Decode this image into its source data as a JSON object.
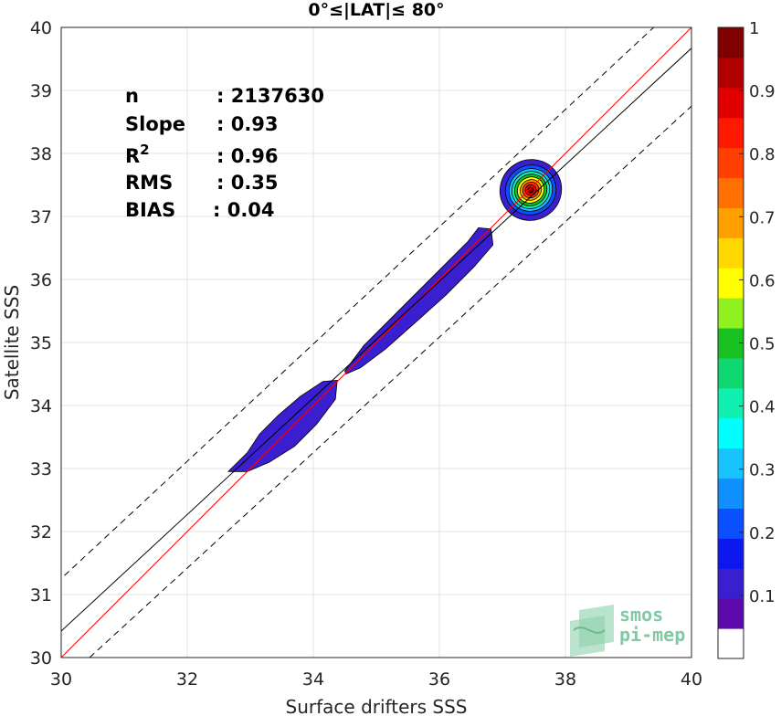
{
  "chart_data": {
    "type": "heatmap",
    "title": "0°≤|LAT|≤ 80°",
    "xlabel": "Surface drifters SSS",
    "ylabel": "Satellite SSS",
    "xlim": [
      30,
      40
    ],
    "ylim": [
      30,
      40
    ],
    "xticks": [
      30,
      32,
      34,
      36,
      38,
      40
    ],
    "yticks": [
      30,
      31,
      32,
      33,
      34,
      35,
      36,
      37,
      38,
      39,
      40
    ],
    "grid": true,
    "stats": [
      {
        "key": "n",
        "value": ": 2137630"
      },
      {
        "key": "Slope",
        "value": ": 0.93"
      },
      {
        "key": "R",
        "sup": "2",
        "value": ": 0.96"
      },
      {
        "key": "RMS",
        "value": ": 0.35"
      },
      {
        "key": "BIAS",
        "value": ": 0.04"
      }
    ],
    "lines": [
      {
        "name": "one-to-one",
        "color": "#ff0000",
        "style": "solid",
        "intercept": 0,
        "slope": 1
      },
      {
        "name": "regression",
        "color": "#000000",
        "style": "solid",
        "points": [
          [
            30,
            30.42
          ],
          [
            40,
            39.67
          ]
        ]
      },
      {
        "name": "upper-bound",
        "color": "#000000",
        "style": "dashed",
        "points": [
          [
            30.05,
            31.3
          ],
          [
            39.4,
            40
          ]
        ]
      },
      {
        "name": "lower-bound",
        "color": "#000000",
        "style": "dashed",
        "points": [
          [
            30.45,
            30
          ],
          [
            40,
            38.75
          ]
        ]
      }
    ],
    "density_blobs": [
      {
        "outline": [
          [
            32.65,
            32.95
          ],
          [
            32.95,
            33.25
          ],
          [
            33.15,
            33.55
          ],
          [
            33.45,
            33.85
          ],
          [
            33.8,
            34.15
          ],
          [
            34.15,
            34.38
          ],
          [
            34.38,
            34.4
          ],
          [
            34.35,
            34.1
          ],
          [
            34.05,
            33.7
          ],
          [
            33.7,
            33.35
          ],
          [
            33.3,
            33.1
          ],
          [
            32.95,
            32.95
          ]
        ],
        "level": 0.1
      },
      {
        "outline": [
          [
            34.5,
            34.55
          ],
          [
            34.8,
            34.95
          ],
          [
            35.2,
            35.35
          ],
          [
            35.65,
            35.8
          ],
          [
            36.1,
            36.25
          ],
          [
            36.45,
            36.6
          ],
          [
            36.62,
            36.82
          ],
          [
            36.82,
            36.8
          ],
          [
            36.85,
            36.55
          ],
          [
            36.55,
            36.2
          ],
          [
            36.1,
            35.75
          ],
          [
            35.6,
            35.3
          ],
          [
            35.15,
            34.9
          ],
          [
            34.75,
            34.6
          ],
          [
            34.52,
            34.5
          ]
        ],
        "level": 0.1
      },
      {
        "center": [
          37.45,
          37.42
        ],
        "level": 1.0
      }
    ],
    "colorbar": {
      "ticks": [
        "0.1",
        "0.2",
        "0.3",
        "0.4",
        "0.5",
        "0.6",
        "0.7",
        "0.8",
        "0.9",
        "1"
      ],
      "colors": [
        "#ffffff",
        "#5b0aab",
        "#3a1fd0",
        "#0d18f0",
        "#0a50ff",
        "#1090ff",
        "#18c4ff",
        "#00ffff",
        "#10f0b0",
        "#10d870",
        "#18c020",
        "#90f020",
        "#ffff00",
        "#ffd800",
        "#ffa000",
        "#ff7000",
        "#ff4000",
        "#ff1800",
        "#e00000",
        "#b00000",
        "#800000"
      ]
    }
  },
  "logo": {
    "line1": "smos",
    "line2": "pi-mep"
  }
}
